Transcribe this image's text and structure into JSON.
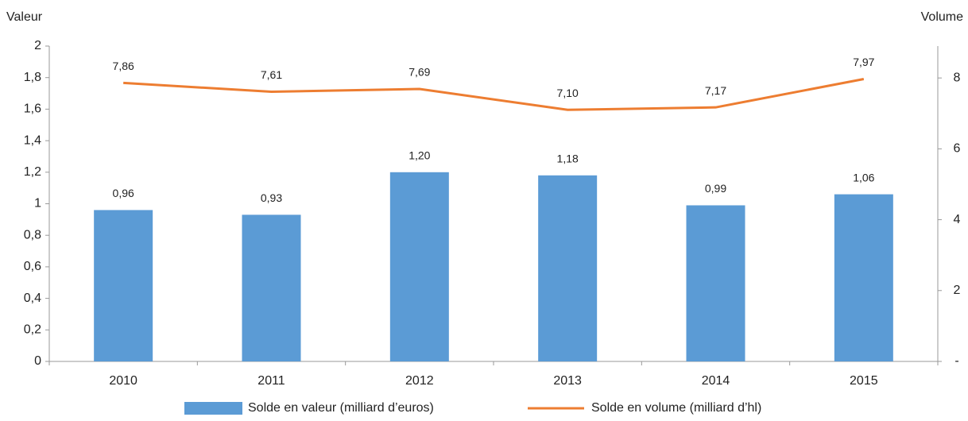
{
  "chart_data": {
    "type": "bar",
    "y_axis_label": "Valeur",
    "y2_axis_label": "Volume",
    "categories": [
      "2010",
      "2011",
      "2012",
      "2013",
      "2014",
      "2015"
    ],
    "series": [
      {
        "name": "Solde en valeur (milliard d’euros)",
        "type": "bar",
        "color": "#5b9bd5",
        "values": [
          0.96,
          0.93,
          1.2,
          1.18,
          0.99,
          1.06
        ],
        "value_labels": [
          "0,96",
          "0,93",
          "1,20",
          "1,18",
          "0,99",
          "1,06"
        ]
      },
      {
        "name": "Solde en volume (milliard d’hl)",
        "type": "line",
        "axis": "y2",
        "color": "#ed7d31",
        "values": [
          7.86,
          7.61,
          7.69,
          7.1,
          7.17,
          7.97
        ],
        "value_labels": [
          "7,86",
          "7,61",
          "7,69",
          "7,10",
          "7,17",
          "7,97"
        ]
      }
    ],
    "ylim": [
      0,
      2
    ],
    "yticks": [
      0,
      {
        "value": 0.2,
        "label": "0,2"
      },
      {
        "value": 0.4,
        "label": "0,4"
      },
      {
        "value": 0.6,
        "label": "0,6"
      },
      {
        "value": 0.8,
        "label": "0,8"
      },
      1,
      {
        "value": 1.2,
        "label": "1,2"
      },
      {
        "value": 1.4,
        "label": "1,4"
      },
      {
        "value": 1.6,
        "label": "1,6"
      },
      {
        "value": 1.8,
        "label": "1,8"
      },
      2
    ],
    "y2lim": [
      0,
      8.9
    ],
    "y2ticks": [
      {
        "value": 0,
        "label": "-"
      },
      2,
      4,
      6,
      8
    ],
    "legend": "bottom"
  }
}
